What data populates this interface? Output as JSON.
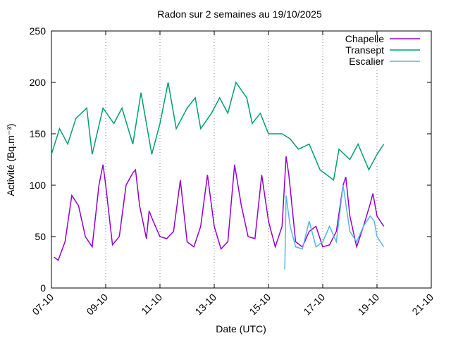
{
  "chart_data": {
    "type": "line",
    "title": "Radon sur 2 semaines au 19/10/2025",
    "xlabel": "Date (UTC)",
    "ylabel": "Activité (Bq.m⁻³)",
    "xlim": [
      7,
      21
    ],
    "ylim": [
      0,
      250
    ],
    "xticks": [
      {
        "value": 7,
        "label": "07-10"
      },
      {
        "value": 9,
        "label": "09-10"
      },
      {
        "value": 11,
        "label": "11-10"
      },
      {
        "value": 13,
        "label": "13-10"
      },
      {
        "value": 15,
        "label": "15-10"
      },
      {
        "value": 17,
        "label": "17-10"
      },
      {
        "value": 19,
        "label": "19-10"
      },
      {
        "value": 21,
        "label": "21-10"
      }
    ],
    "yticks": [
      0,
      50,
      100,
      150,
      200,
      250
    ],
    "grid": "x",
    "legend": "top-right",
    "series": [
      {
        "name": "Chapelle",
        "color": "#9400d3",
        "x": [
          7.1,
          7.25,
          7.5,
          7.75,
          8.0,
          8.25,
          8.5,
          8.75,
          8.9,
          9.0,
          9.25,
          9.5,
          9.75,
          10.0,
          10.1,
          10.25,
          10.5,
          10.6,
          10.75,
          11.0,
          11.25,
          11.5,
          11.75,
          12.0,
          12.25,
          12.5,
          12.75,
          13.0,
          13.25,
          13.5,
          13.75,
          14.0,
          14.25,
          14.5,
          14.75,
          15.0,
          15.25,
          15.5,
          15.65,
          15.75,
          16.0,
          16.25,
          16.5,
          16.75,
          17.0,
          17.25,
          17.5,
          17.75,
          17.85,
          18.0,
          18.25,
          18.5,
          18.75,
          18.85,
          19.0,
          19.25
        ],
        "values": [
          30,
          27,
          45,
          90,
          80,
          50,
          40,
          100,
          120,
          100,
          42,
          50,
          100,
          112,
          115,
          80,
          48,
          75,
          65,
          50,
          48,
          55,
          105,
          45,
          40,
          60,
          110,
          60,
          38,
          45,
          120,
          80,
          50,
          48,
          110,
          65,
          40,
          60,
          128,
          110,
          45,
          40,
          55,
          60,
          40,
          42,
          55,
          100,
          108,
          70,
          40,
          60,
          82,
          92,
          70,
          60
        ]
      },
      {
        "name": "Transept",
        "color": "#009e73",
        "x": [
          7.0,
          7.3,
          7.6,
          7.9,
          8.3,
          8.5,
          8.9,
          9.3,
          9.6,
          10.0,
          10.3,
          10.7,
          11.0,
          11.3,
          11.6,
          12.0,
          12.3,
          12.5,
          12.9,
          13.2,
          13.5,
          13.8,
          14.2,
          14.4,
          14.7,
          15.0,
          15.5,
          15.8,
          16.1,
          16.5,
          16.9,
          17.4,
          17.6,
          18.0,
          18.3,
          18.7,
          19.0,
          19.25
        ],
        "values": [
          130,
          155,
          140,
          165,
          175,
          130,
          175,
          160,
          175,
          140,
          190,
          130,
          160,
          200,
          155,
          175,
          185,
          155,
          170,
          185,
          170,
          200,
          185,
          160,
          170,
          150,
          150,
          145,
          135,
          140,
          115,
          105,
          135,
          125,
          140,
          115,
          130,
          140
        ]
      },
      {
        "name": "Escalier",
        "color": "#56b4e9",
        "x": [
          15.6,
          15.65,
          15.8,
          16.0,
          16.25,
          16.5,
          16.75,
          17.0,
          17.25,
          17.5,
          17.75,
          18.0,
          18.25,
          18.5,
          18.75,
          18.9,
          19.0,
          19.25
        ],
        "values": [
          18,
          90,
          60,
          40,
          38,
          65,
          40,
          45,
          60,
          45,
          100,
          55,
          45,
          60,
          70,
          65,
          50,
          40
        ]
      }
    ]
  }
}
